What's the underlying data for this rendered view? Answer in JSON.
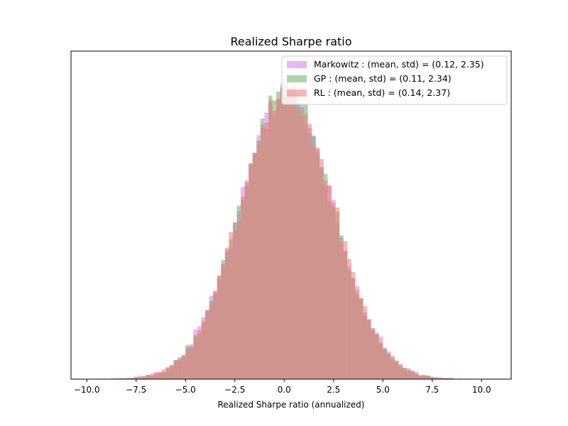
{
  "chart_data": {
    "type": "histogram",
    "title": "Realized Sharpe ratio",
    "xlabel": "Realized Sharpe ratio (annualized)",
    "ylabel": "",
    "xlim": [
      -10.8,
      11.5
    ],
    "xticks": [
      -10.0,
      -7.5,
      -5.0,
      -2.5,
      0.0,
      2.5,
      5.0,
      7.5,
      10.0
    ],
    "xtick_labels": [
      "−10.0",
      "−7.5",
      "−5.0",
      "−2.5",
      "0.0",
      "2.5",
      "5.0",
      "7.5",
      "10.0"
    ],
    "yaxis_visible": false,
    "grid": false,
    "legend_position": "top-right",
    "series": [
      {
        "name": "Markowitz : (mean, std) = (0.12, 2.35)",
        "mean": 0.12,
        "std": 2.35,
        "color": "#dd77ee",
        "alpha": 0.55,
        "seed": 7
      },
      {
        "name": "GP : (mean, std) = (0.11, 2.34)",
        "mean": 0.11,
        "std": 2.34,
        "color": "#6ab36a",
        "alpha": 0.55,
        "seed": 19
      },
      {
        "name": "RL : (mean, std) = (0.14, 2.37)",
        "mean": 0.14,
        "std": 2.37,
        "color": "#f47a7a",
        "alpha": 0.55,
        "seed": 31
      }
    ]
  }
}
